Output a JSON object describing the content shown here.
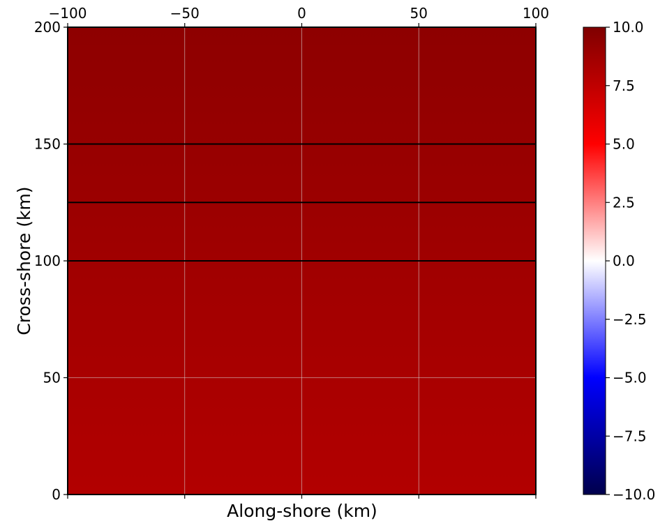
{
  "chart_data": {
    "type": "heatmap",
    "title": "",
    "xlabel": "Along-shore (km)",
    "ylabel": "Cross-shore (km)",
    "xlim": [
      -100,
      100
    ],
    "ylim": [
      0,
      200
    ],
    "x_ticks": [
      -100,
      -50,
      0,
      50,
      100
    ],
    "x_tick_labels": [
      "−100",
      "−50",
      "0",
      "50",
      "100"
    ],
    "x_tick_label_position": "top",
    "y_ticks": [
      0,
      50,
      100,
      150,
      200
    ],
    "y_tick_labels": [
      "0",
      "50",
      "100",
      "150",
      "200"
    ],
    "grid": true,
    "field": {
      "description_values": "value varies only with cross-shore distance",
      "y": [
        0,
        200
      ],
      "values": [
        8.0,
        9.4
      ]
    },
    "horizontal_lines_y": [
      100,
      125,
      150
    ],
    "colorbar": {
      "colormap": "seismic",
      "vmin": -10,
      "vmax": 10,
      "ticks": [
        10,
        7.5,
        5,
        2.5,
        0,
        -2.5,
        -5,
        -7.5,
        -10
      ],
      "tick_labels": [
        "10.0",
        "7.5",
        "5.0",
        "2.5",
        "0.0",
        "−2.5",
        "−5.0",
        "−7.5",
        "−10.0"
      ],
      "placement": "right"
    }
  }
}
